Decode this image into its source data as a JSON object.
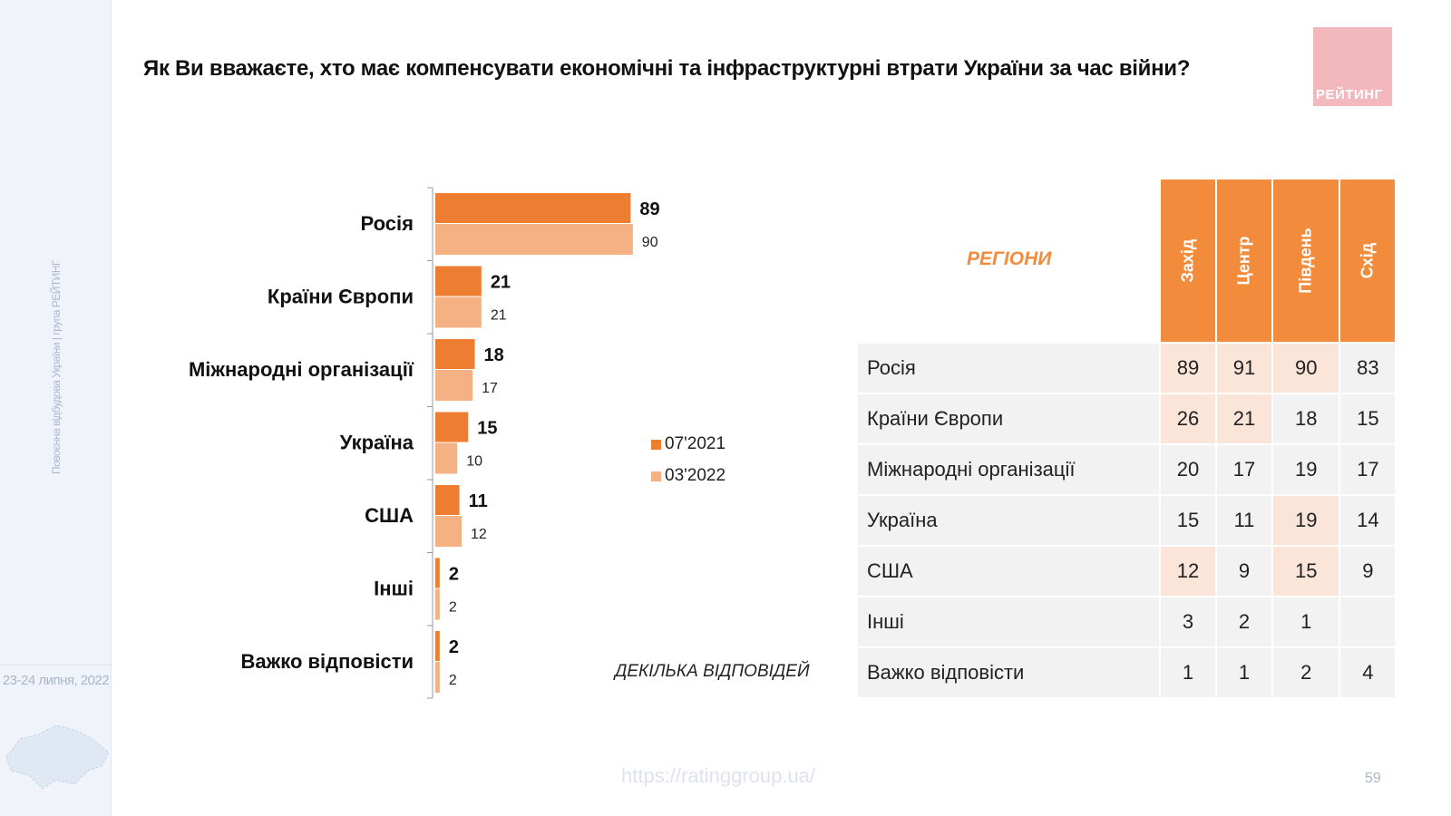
{
  "title": "Як Ви вважаєте, хто має компенсувати економічні та інфраструктурні втрати України за час війни?",
  "logo": "РЕЙТИНГ",
  "sidebar": {
    "text": "Повоєнна відбудова України | група РЕЙТИНГ",
    "date": "23-24 липня, 2022"
  },
  "note": "ДЕКІЛЬКА ВІДПОВІДЕЙ",
  "url": "https://ratinggroup.ua/",
  "page_number": "59",
  "colors": {
    "dark": "#ed7d31",
    "light": "#f4b183",
    "header": "#f28c3c",
    "highlight": "#fbe5d9"
  },
  "chart_data": {
    "type": "bar",
    "orientation": "horizontal",
    "categories": [
      "Росія",
      "Країни Європи",
      "Міжнародні організації",
      "Україна",
      "США",
      "Інші",
      "Важко відповісти"
    ],
    "series": [
      {
        "name": "07'2021",
        "values": [
          89,
          21,
          18,
          15,
          11,
          2,
          2
        ]
      },
      {
        "name": "03'2022",
        "values": [
          90,
          21,
          17,
          10,
          12,
          2,
          2
        ]
      }
    ],
    "xlim": [
      0,
      100
    ],
    "legend": "right"
  },
  "table": {
    "title": "РЕГІОНИ",
    "columns": [
      "Захід",
      "Центр",
      "Південь",
      "Схід"
    ],
    "rows": [
      {
        "label": "Росія",
        "values": [
          "89",
          "91",
          "90",
          "83"
        ],
        "highlight": [
          true,
          true,
          true,
          false
        ]
      },
      {
        "label": "Країни Європи",
        "values": [
          "26",
          "21",
          "18",
          "15"
        ],
        "highlight": [
          true,
          true,
          false,
          false
        ]
      },
      {
        "label": "Міжнародні організації",
        "values": [
          "20",
          "17",
          "19",
          "17"
        ],
        "highlight": [
          false,
          false,
          false,
          false
        ]
      },
      {
        "label": "Україна",
        "values": [
          "15",
          "11",
          "19",
          "14"
        ],
        "highlight": [
          false,
          false,
          true,
          false
        ]
      },
      {
        "label": "США",
        "values": [
          "12",
          "9",
          "15",
          "9"
        ],
        "highlight": [
          true,
          false,
          true,
          false
        ]
      },
      {
        "label": "Інші",
        "values": [
          "3",
          "2",
          "1",
          ""
        ],
        "highlight": [
          false,
          false,
          false,
          false
        ]
      },
      {
        "label": "Важко відповісти",
        "values": [
          "1",
          "1",
          "2",
          "4"
        ],
        "highlight": [
          false,
          false,
          false,
          false
        ]
      }
    ]
  }
}
